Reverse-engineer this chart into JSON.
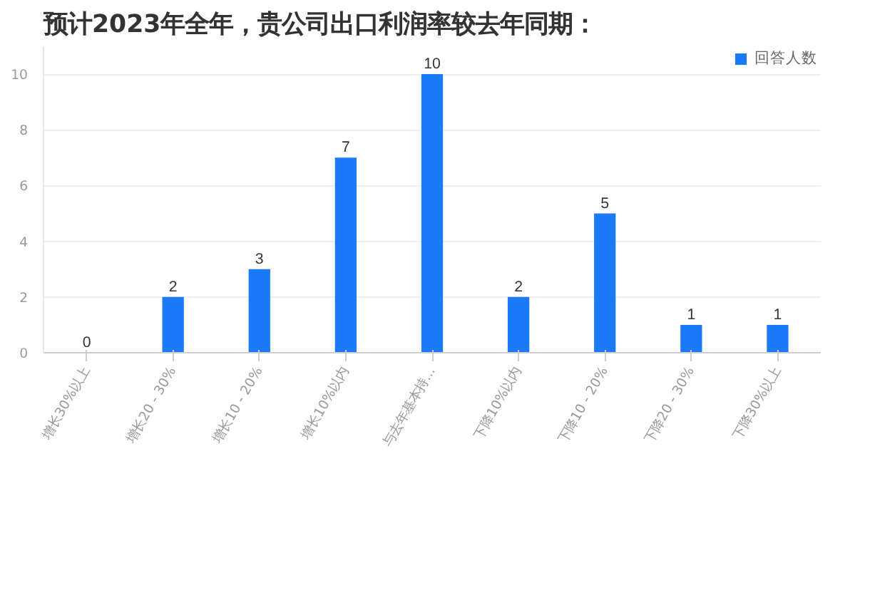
{
  "chart_data": {
    "type": "bar",
    "title": "预计2023年全年，贵公司出口利润率较去年同期：",
    "categories": [
      "增长30%以上",
      "增长20 - 30%",
      "增长10 - 20%",
      "增长10%以内",
      "与去年基本持...",
      "下降10%以内",
      "下降10 - 20%",
      "下降20 - 30%",
      "下降30%以上"
    ],
    "series": [
      {
        "name": "回答人数",
        "color": "#1a7af8",
        "values": [
          0,
          2,
          3,
          7,
          10,
          2,
          5,
          1,
          1
        ]
      }
    ],
    "ylim": [
      0,
      11
    ],
    "yticks": [
      0,
      2,
      4,
      6,
      8,
      10
    ],
    "grid": "y",
    "legend": "top right",
    "data_labels": true
  }
}
